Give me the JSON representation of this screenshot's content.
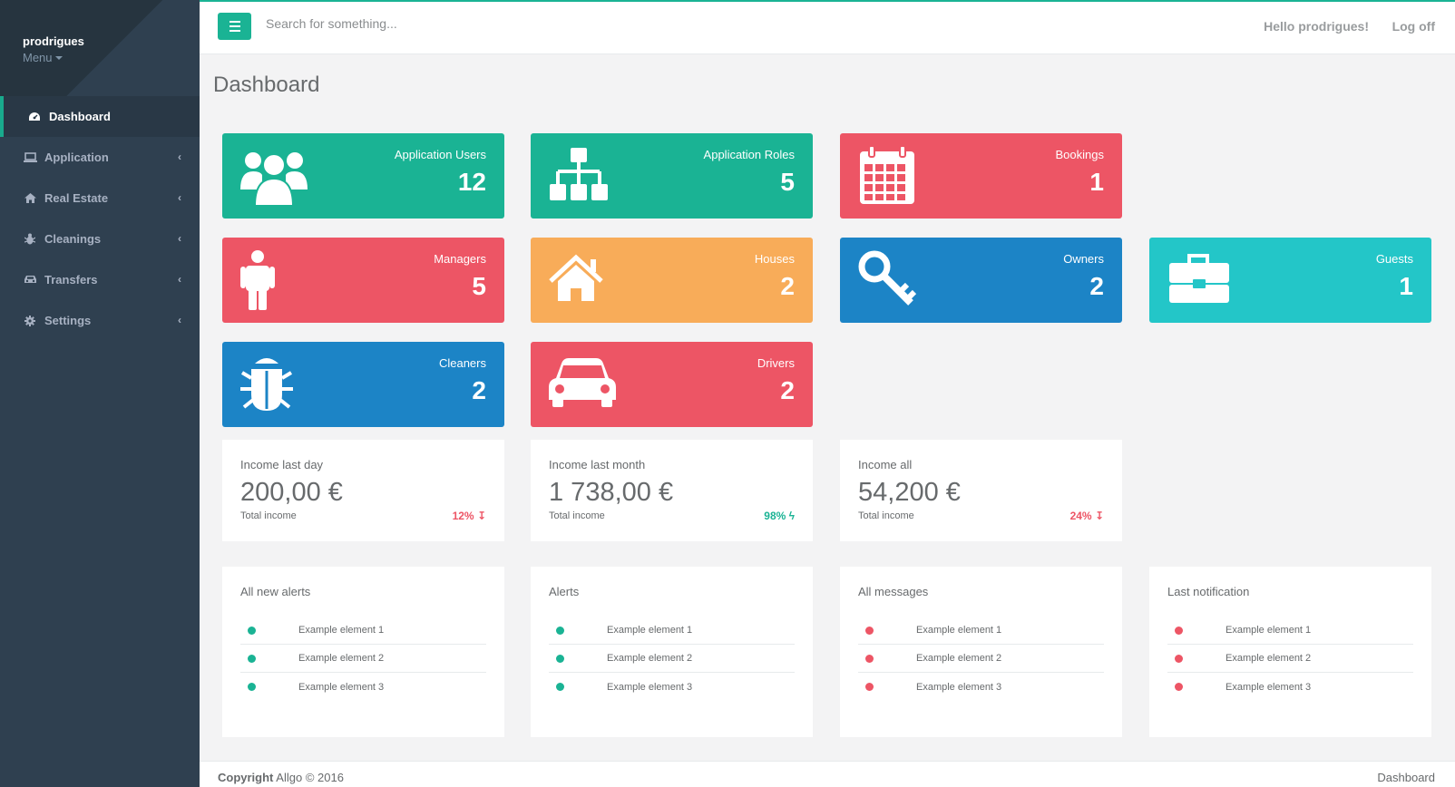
{
  "sidebar": {
    "user": "prodrigues",
    "menu_label": "Menu",
    "items": [
      {
        "label": "Dashboard",
        "icon": "dashboard-icon"
      },
      {
        "label": "Application",
        "icon": "laptop-icon"
      },
      {
        "label": "Real Estate",
        "icon": "home-icon"
      },
      {
        "label": "Cleanings",
        "icon": "bug-icon"
      },
      {
        "label": "Transfers",
        "icon": "car-icon"
      },
      {
        "label": "Settings",
        "icon": "gear-icon"
      }
    ]
  },
  "topbar": {
    "search_placeholder": "Search for something...",
    "hello": "Hello prodrigues!",
    "logoff": "Log off"
  },
  "page_title": "Dashboard",
  "widgets": [
    {
      "label": "Application Users",
      "value": "12",
      "color": "#1ab394",
      "icon": "users-icon"
    },
    {
      "label": "Application Roles",
      "value": "5",
      "color": "#1ab394",
      "icon": "sitemap-icon"
    },
    {
      "label": "Bookings",
      "value": "1",
      "color": "#ed5565",
      "icon": "calendar-icon"
    },
    {
      "label": "Managers",
      "value": "5",
      "color": "#ed5565",
      "icon": "male-icon"
    },
    {
      "label": "Houses",
      "value": "2",
      "color": "#f8ac59",
      "icon": "house-icon"
    },
    {
      "label": "Owners",
      "value": "2",
      "color": "#1c84c6",
      "icon": "key-icon"
    },
    {
      "label": "Guests",
      "value": "1",
      "color": "#23c6c8",
      "icon": "briefcase-icon"
    },
    {
      "label": "Cleaners",
      "value": "2",
      "color": "#1c84c6",
      "icon": "bug-icon"
    },
    {
      "label": "Drivers",
      "value": "2",
      "color": "#ed5565",
      "icon": "car-icon"
    }
  ],
  "income": [
    {
      "title": "Income last day",
      "value": "200,00 €",
      "sub": "Total income",
      "pct": "12%",
      "trend": "down",
      "arrow": "↧"
    },
    {
      "title": "Income last month",
      "value": "1 738,00 €",
      "sub": "Total income",
      "pct": "98%",
      "trend": "up",
      "arrow": "ϟ"
    },
    {
      "title": "Income all",
      "value": "54,200 €",
      "sub": "Total income",
      "pct": "24%",
      "trend": "down",
      "arrow": "↧"
    }
  ],
  "lists": [
    {
      "title": "All new alerts",
      "dot_color": "#1ab394",
      "items": [
        "Example element 1",
        "Example element 2",
        "Example element 3"
      ]
    },
    {
      "title": "Alerts",
      "dot_color": "#1ab394",
      "items": [
        "Example element 1",
        "Example element 2",
        "Example element 3"
      ]
    },
    {
      "title": "All messages",
      "dot_color": "#ed5565",
      "items": [
        "Example element 1",
        "Example element 2",
        "Example element 3"
      ]
    },
    {
      "title": "Last notification",
      "dot_color": "#ed5565",
      "items": [
        "Example element 1",
        "Example element 2",
        "Example element 3"
      ]
    }
  ],
  "footer": {
    "copyright_bold": "Copyright",
    "copyright_rest": "Allgo © 2016",
    "right": "Dashboard"
  },
  "colors": {
    "sidebar": "#2f4050",
    "accent": "#1ab394",
    "red": "#ed5565",
    "orange": "#f8ac59",
    "blue": "#1c84c6",
    "cyan": "#23c6c8"
  }
}
